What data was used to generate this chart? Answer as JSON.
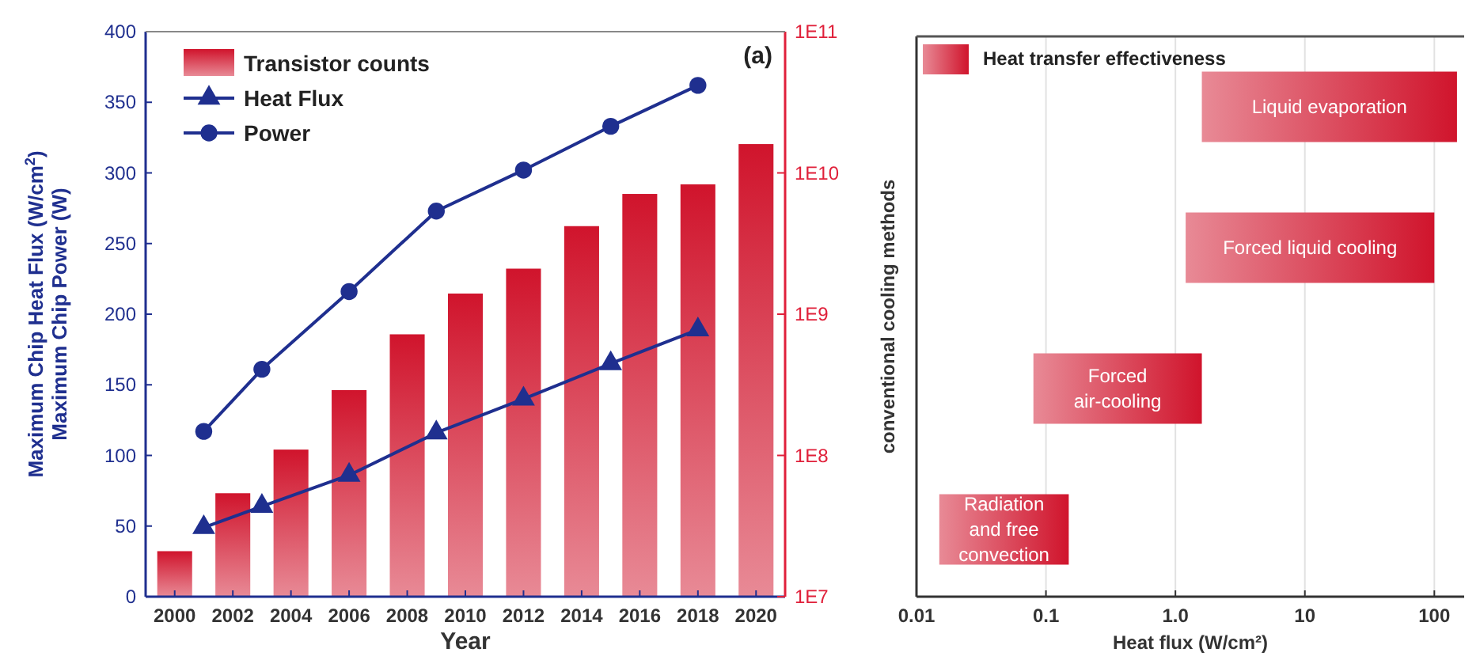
{
  "chart_data": [
    {
      "type": "bar",
      "x": [
        2000,
        2002,
        2004,
        2006,
        2008,
        2010,
        2012,
        2014,
        2016,
        2018,
        2020
      ],
      "xlim": [
        1999,
        2021
      ],
      "xticks": [
        2000,
        2002,
        2004,
        2006,
        2008,
        2010,
        2012,
        2014,
        2016,
        2018,
        2020
      ],
      "ylim": [
        0,
        400
      ],
      "yticks": [
        0,
        50,
        100,
        150,
        200,
        250,
        300,
        350,
        400
      ],
      "y2lim": [
        10000000,
        100000000000
      ],
      "y2ticks": [
        {
          "value": 10000000,
          "label": "1E7"
        },
        {
          "value": 100000000,
          "label": "1E8"
        },
        {
          "value": 1000000000,
          "label": "1E9"
        },
        {
          "value": 10000000000,
          "label": "1E10"
        },
        {
          "value": 100000000000,
          "label": "1E11"
        }
      ],
      "log": "y2",
      "xlabel": "Year",
      "ylabel": "Maximum Chip Heat Flux (W/cm$^{2}$)\nMaximum Chip Power (W)",
      "legend": "top left",
      "annotations": [
        "(a)"
      ],
      "series": [
        {
          "name": "Transistor counts",
          "type": "bar",
          "axis": "y2",
          "color": "#d0142c",
          "values": [
            21000000,
            54000000,
            110000000,
            290000000,
            720000000,
            1400000000,
            2100000000,
            4200000000,
            7100000000,
            8300000000,
            16000000000
          ]
        },
        {
          "name": "Heat Flux",
          "type": "line",
          "x": [
            2001,
            2003,
            2006,
            2009,
            2012,
            2015,
            2018
          ],
          "color": "#1f2f8f",
          "marker": "triangle",
          "values": [
            49,
            64,
            86,
            116,
            140,
            165,
            189
          ]
        },
        {
          "name": "Power",
          "type": "line",
          "x": [
            2001,
            2003,
            2006,
            2009,
            2012,
            2015,
            2018
          ],
          "color": "#1f2f8f",
          "marker": "circle",
          "values": [
            117,
            161,
            216,
            273,
            302,
            333,
            362
          ]
        }
      ]
    },
    {
      "type": "bar",
      "orientation": "horizontal",
      "categories": [
        "Liquid evaporation",
        "Forced liquid cooling",
        "Forced air-cooling",
        "Radiation and free convection"
      ],
      "xlim": [
        0.01,
        170
      ],
      "xticks": [
        0.01,
        0.1,
        {
          "value": 1,
          "label": "1.0"
        },
        10,
        100
      ],
      "log": "x",
      "grid": "x",
      "xlabel": "Heat flux (W/cm²)",
      "ylabel": "conventional cooling methods",
      "legend": "top left",
      "series": [
        {
          "name": "Heat transfer effectiveness",
          "color": "#d0142c",
          "base": [
            1.6,
            1.2,
            0.08,
            0.015
          ],
          "values": [
            148,
            98.8,
            1.52,
            0.135
          ]
        }
      ]
    }
  ]
}
